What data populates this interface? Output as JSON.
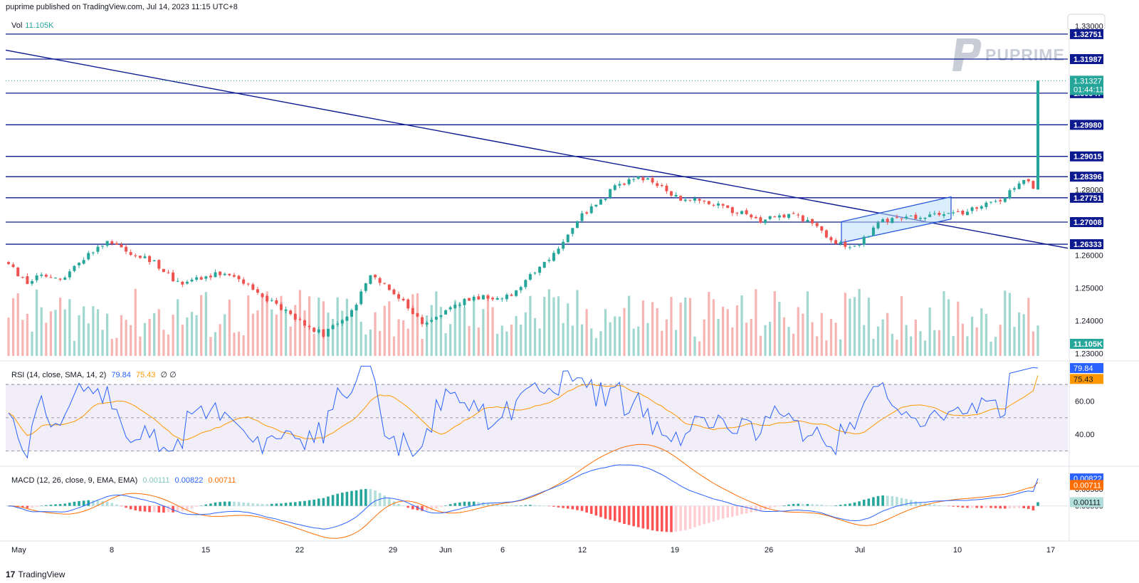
{
  "header": {
    "publisher_text": "puprime published on TradingView.com, Jul 14, 2023 11:15 UTC+8"
  },
  "watermark": {
    "brand": "PUPRIME"
  },
  "footer": {
    "logo_text": "17",
    "brand": "TradingView"
  },
  "colors": {
    "up": "#26a69a",
    "down": "#ef5350",
    "line": "#0d1a8f",
    "rsi": "#2962ff",
    "rsi_ma": "#ff9800",
    "macd": "#2962ff",
    "signal": "#ff6d00"
  },
  "chart_data": [
    {
      "type": "candlestick",
      "title": "",
      "ylim": [
        1.2292,
        1.3314
      ],
      "y_axis_ticks": [
        "1.33000",
        "1.28000",
        "1.26000",
        "1.25000",
        "1.24000",
        "1.23000"
      ],
      "x_axis_ticks": [
        "May",
        "8",
        "15",
        "22",
        "29",
        "Jun",
        "6",
        "12",
        "19",
        "26",
        "Jul",
        "10",
        "17"
      ],
      "horizontal_levels": [
        {
          "label": "1.32751",
          "value": 1.32751
        },
        {
          "label": "1.31987",
          "value": 1.31987
        },
        {
          "label": "1.30947",
          "value": 1.30947
        },
        {
          "label": "1.29980",
          "value": 1.2998
        },
        {
          "label": "1.29015",
          "value": 1.29015
        },
        {
          "label": "1.28396",
          "value": 1.28396
        },
        {
          "label": "1.27751",
          "value": 1.27751
        },
        {
          "label": "1.27008",
          "value": 1.27008
        },
        {
          "label": "1.26333",
          "value": 1.26333
        }
      ],
      "last_price": {
        "value": "1.31327",
        "countdown": "01:44:11"
      },
      "trendline": {
        "start": 1.3226,
        "end": 1.2621,
        "description": "descending trendline"
      },
      "channel": {
        "lower_start": 1.2638,
        "lower_end": 1.271,
        "upper_start": 1.2702,
        "upper_end": 1.2778
      },
      "volume": {
        "label": "Vol",
        "value": "11.105K"
      }
    },
    {
      "type": "line",
      "title": "RSI (14, close, SMA, 14, 2)",
      "values": {
        "rsi": "79.84",
        "ma": "75.43",
        "extra": "∅ ∅"
      },
      "ylim": [
        23,
        82
      ],
      "y_axis_ticks": [
        "60.00",
        "40.00"
      ],
      "band": [
        30,
        70
      ],
      "middle": 50
    },
    {
      "type": "line",
      "title": "MACD (12, 26, close, 9, EMA, EMA)",
      "values": {
        "hist": "0.00111",
        "macd": "0.00822",
        "signal": "0.00711"
      },
      "ylim": [
        -0.0088,
        0.0108
      ],
      "y_axis_ticks": [
        "0.00500",
        "0.00000"
      ]
    }
  ]
}
